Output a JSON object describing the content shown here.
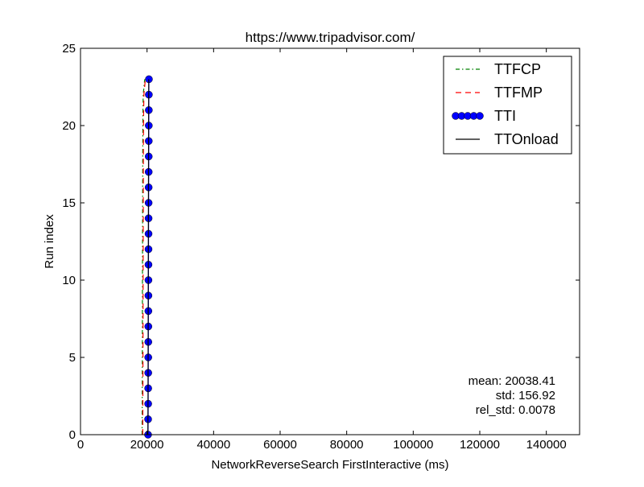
{
  "chart_data": {
    "type": "line",
    "title": "https://www.tripadvisor.com/",
    "xlabel": "NetworkReverseSearch FirstInteractive (ms)",
    "ylabel": "Run index",
    "xlim": [
      0,
      150000
    ],
    "ylim": [
      0,
      25
    ],
    "x_ticks": [
      0,
      20000,
      40000,
      60000,
      80000,
      100000,
      120000,
      140000
    ],
    "y_ticks": [
      0,
      5,
      10,
      15,
      20,
      25
    ],
    "grid": false,
    "legend_position": "top-right",
    "series": [
      {
        "name": "TTFCP",
        "color": "#008000",
        "style": "dash-dot",
        "points": [
          {
            "x": 18500,
            "y": 0
          },
          {
            "x": 18520,
            "y": 1
          },
          {
            "x": 18540,
            "y": 2
          },
          {
            "x": 18550,
            "y": 3
          },
          {
            "x": 18560,
            "y": 4
          },
          {
            "x": 18570,
            "y": 5
          },
          {
            "x": 18580,
            "y": 6
          },
          {
            "x": 18590,
            "y": 7
          },
          {
            "x": 18600,
            "y": 8
          },
          {
            "x": 18610,
            "y": 9
          },
          {
            "x": 18620,
            "y": 10
          },
          {
            "x": 18630,
            "y": 11
          },
          {
            "x": 18640,
            "y": 12
          },
          {
            "x": 18650,
            "y": 13
          },
          {
            "x": 18660,
            "y": 14
          },
          {
            "x": 18670,
            "y": 15
          },
          {
            "x": 18680,
            "y": 16
          },
          {
            "x": 18690,
            "y": 17
          },
          {
            "x": 18700,
            "y": 18
          },
          {
            "x": 18720,
            "y": 19
          },
          {
            "x": 18740,
            "y": 20
          },
          {
            "x": 18770,
            "y": 21
          },
          {
            "x": 18850,
            "y": 22
          },
          {
            "x": 19300,
            "y": 23
          }
        ]
      },
      {
        "name": "TTFMP",
        "color": "#ff0000",
        "style": "dashed",
        "points": [
          {
            "x": 18700,
            "y": 0
          },
          {
            "x": 18720,
            "y": 1
          },
          {
            "x": 18740,
            "y": 2
          },
          {
            "x": 18750,
            "y": 3
          },
          {
            "x": 18760,
            "y": 4
          },
          {
            "x": 18770,
            "y": 5
          },
          {
            "x": 18780,
            "y": 6
          },
          {
            "x": 18790,
            "y": 7
          },
          {
            "x": 18800,
            "y": 8
          },
          {
            "x": 18810,
            "y": 9
          },
          {
            "x": 18820,
            "y": 10
          },
          {
            "x": 18830,
            "y": 11
          },
          {
            "x": 18840,
            "y": 12
          },
          {
            "x": 18850,
            "y": 13
          },
          {
            "x": 18860,
            "y": 14
          },
          {
            "x": 18870,
            "y": 15
          },
          {
            "x": 18880,
            "y": 16
          },
          {
            "x": 18890,
            "y": 17
          },
          {
            "x": 18900,
            "y": 18
          },
          {
            "x": 18920,
            "y": 19
          },
          {
            "x": 18940,
            "y": 20
          },
          {
            "x": 18980,
            "y": 21
          },
          {
            "x": 19050,
            "y": 22
          },
          {
            "x": 19500,
            "y": 23
          }
        ]
      },
      {
        "name": "TTI",
        "color": "#0000ff",
        "style": "solid-markers",
        "points": [
          {
            "x": 20300,
            "y": 0
          },
          {
            "x": 20320,
            "y": 1
          },
          {
            "x": 20340,
            "y": 2
          },
          {
            "x": 20350,
            "y": 3
          },
          {
            "x": 20360,
            "y": 4
          },
          {
            "x": 20370,
            "y": 5
          },
          {
            "x": 20380,
            "y": 6
          },
          {
            "x": 20390,
            "y": 7
          },
          {
            "x": 20400,
            "y": 8
          },
          {
            "x": 20410,
            "y": 9
          },
          {
            "x": 20420,
            "y": 10
          },
          {
            "x": 20430,
            "y": 11
          },
          {
            "x": 20440,
            "y": 12
          },
          {
            "x": 20450,
            "y": 13
          },
          {
            "x": 20460,
            "y": 14
          },
          {
            "x": 20470,
            "y": 15
          },
          {
            "x": 20480,
            "y": 16
          },
          {
            "x": 20490,
            "y": 17
          },
          {
            "x": 20500,
            "y": 18
          },
          {
            "x": 20510,
            "y": 19
          },
          {
            "x": 20520,
            "y": 20
          },
          {
            "x": 20530,
            "y": 21
          },
          {
            "x": 20540,
            "y": 22
          },
          {
            "x": 20560,
            "y": 23
          }
        ]
      },
      {
        "name": "TTOnload",
        "color": "#000000",
        "style": "solid",
        "points": [
          {
            "x": 20250,
            "y": 0
          },
          {
            "x": 20270,
            "y": 1
          },
          {
            "x": 20290,
            "y": 2
          },
          {
            "x": 20300,
            "y": 3
          },
          {
            "x": 20310,
            "y": 4
          },
          {
            "x": 20320,
            "y": 5
          },
          {
            "x": 20330,
            "y": 6
          },
          {
            "x": 20340,
            "y": 7
          },
          {
            "x": 20350,
            "y": 8
          },
          {
            "x": 20360,
            "y": 9
          },
          {
            "x": 20370,
            "y": 10
          },
          {
            "x": 20380,
            "y": 11
          },
          {
            "x": 20390,
            "y": 12
          },
          {
            "x": 20400,
            "y": 13
          },
          {
            "x": 20410,
            "y": 14
          },
          {
            "x": 20420,
            "y": 15
          },
          {
            "x": 20430,
            "y": 16
          },
          {
            "x": 20440,
            "y": 17
          },
          {
            "x": 20450,
            "y": 18
          },
          {
            "x": 20460,
            "y": 19
          },
          {
            "x": 20470,
            "y": 20
          },
          {
            "x": 20480,
            "y": 21
          },
          {
            "x": 20500,
            "y": 22
          },
          {
            "x": 20520,
            "y": 23
          }
        ]
      }
    ],
    "annotations": {
      "mean": "mean: 20038.41",
      "std": "std: 156.92",
      "rel_std": "rel_std: 0.0078"
    }
  }
}
